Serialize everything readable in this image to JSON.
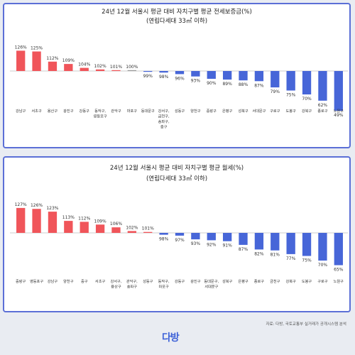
{
  "colors": {
    "above": "#f0555a",
    "below": "#4766d8",
    "axis": "#999999",
    "border": "#5b6fd6"
  },
  "chart_data": [
    {
      "type": "bar",
      "title": "24년 12월 서울시 평균 대비 자치구별 평균 전세보증금(%)",
      "subtitle": "(연립다세대 33㎡ 이하)",
      "baseline": 100,
      "categories": [
        "강남구",
        "서초구",
        "용산구",
        "광진구",
        "강동구",
        "동작구,\n영등포구",
        "관악구",
        "마포구",
        "동대문구",
        "강서구,\n금천구,\n송파구,\n중구",
        "성동구",
        "양천구",
        "중랑구",
        "은평구",
        "성북구",
        "서대문구",
        "구로구",
        "도봉구",
        "강북구",
        "종로구",
        "노원구"
      ],
      "values": [
        126,
        125,
        112,
        109,
        104,
        102,
        101,
        100,
        99,
        98,
        96,
        93,
        90,
        89,
        88,
        87,
        79,
        75,
        70,
        62,
        49
      ],
      "value_labels": [
        "126%",
        "125%",
        "112%",
        "109%",
        "104%",
        "102%",
        "101%",
        "100%",
        "99%",
        "98%",
        "96%",
        "93%",
        "90%",
        "89%",
        "88%",
        "87%",
        "79%",
        "75%",
        "70%",
        "62%",
        "49%"
      ]
    },
    {
      "type": "bar",
      "title": "24년 12월 서울시 평균 대비 자치구별 평균 월세(%)",
      "subtitle": "(연립다세대 33㎡ 이하)",
      "baseline": 100,
      "categories": [
        "중랑구",
        "영등포구",
        "강남구",
        "양천구",
        "중구",
        "서초구",
        "강서구,\n용산구",
        "관악구,\n송파구",
        "성동구",
        "동작구,\n마포구",
        "강동구",
        "광진구",
        "동대문구,\n서대문구",
        "성북구",
        "은평구",
        "종로구",
        "금천구",
        "강북구",
        "도봉구",
        "구로구",
        "노원구"
      ],
      "values": [
        127,
        126,
        123,
        113,
        112,
        109,
        106,
        102,
        101,
        98,
        97,
        93,
        92,
        91,
        87,
        82,
        81,
        77,
        75,
        70,
        65
      ],
      "value_labels": [
        "127%",
        "126%",
        "123%",
        "113%",
        "112%",
        "109%",
        "106%",
        "102%",
        "101%",
        "98%",
        "97%",
        "93%",
        "92%",
        "91%",
        "87%",
        "82%",
        "81%",
        "77%",
        "75%",
        "70%",
        "65%"
      ]
    }
  ],
  "footer": {
    "source": "자료: 다방, 국토교통부 실거래가 공개시스템 분석",
    "logo": "다방"
  }
}
